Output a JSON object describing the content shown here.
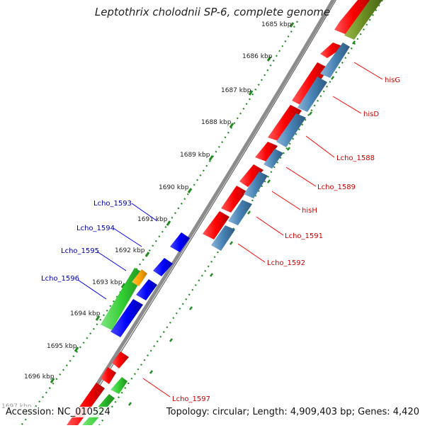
{
  "title": "Leptothrix cholodnii SP-6, complete genome",
  "footer": {
    "accession": "Accession: NC_010524",
    "summary": "Topology: circular; Length: 4,909,403 bp; Genes: 4,420"
  },
  "colors": {
    "backbone": "#8c8c8c",
    "tick": "#228b22",
    "forward_gene": "#ff0000",
    "reverse_cds": "#4682b4",
    "rna": "#6b8e23",
    "gene_blue": "#0000ff",
    "gene_green": "#32cd32",
    "gene_orange": "#ffa500",
    "label_red": "#cc0000",
    "label_blue": "#0000aa"
  },
  "ticks": [
    "1685 kbp",
    "1686 kbp",
    "1687 kbp",
    "1688 kbp",
    "1689 kbp",
    "1690 kbp",
    "1691 kbp",
    "1692 kbp",
    "1693 kbp",
    "1694 kbp",
    "1695 kbp",
    "1696 kbp",
    "1697 kbp"
  ],
  "right_labels": [
    "hisG",
    "hisD",
    "Lcho_1588",
    "Lcho_1589",
    "hisH",
    "Lcho_1591",
    "Lcho_1592",
    "Lcho_1597"
  ],
  "left_labels": [
    "Lcho_1593",
    "Lcho_1594",
    "Lcho_1595",
    "Lcho_1596"
  ]
}
